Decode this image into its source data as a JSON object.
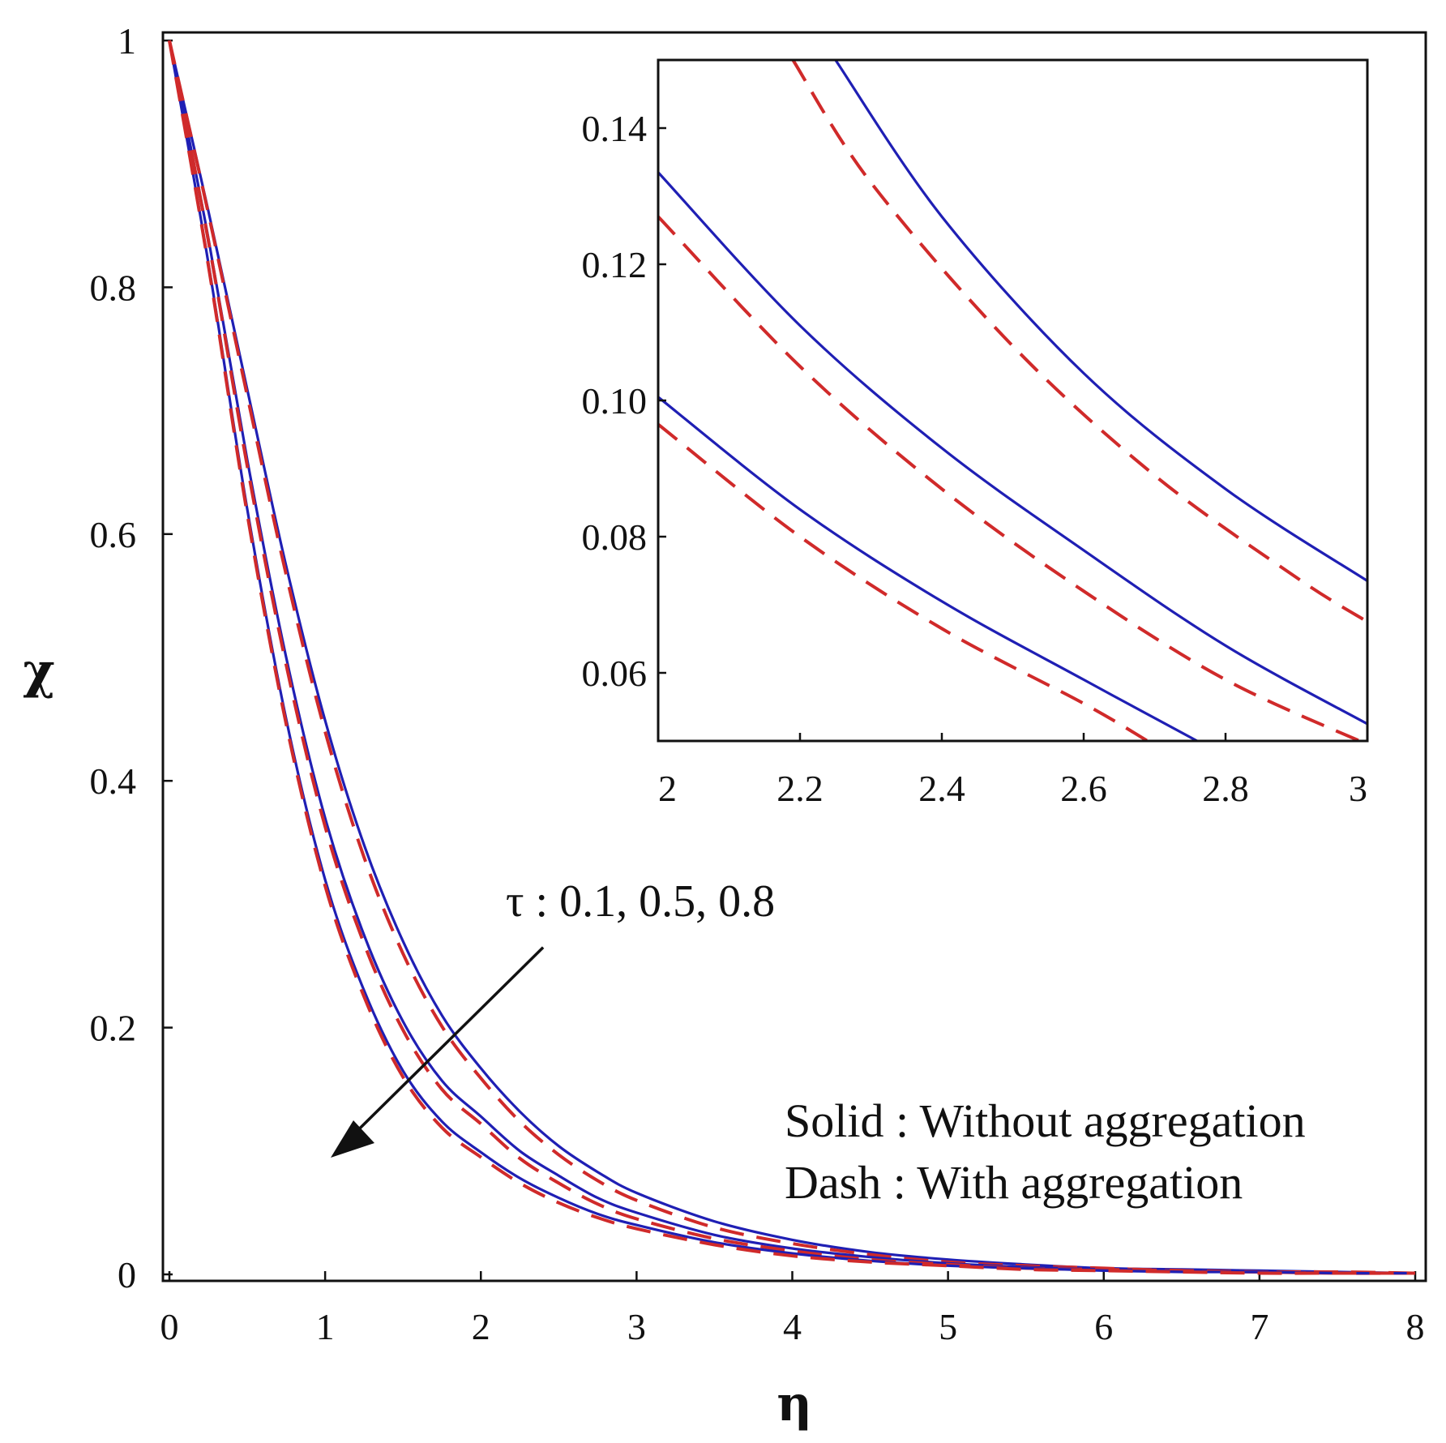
{
  "chart_data": [
    {
      "type": "line",
      "panel": "main",
      "xlabel": "η",
      "ylabel": "χ",
      "xlim": [
        0,
        8
      ],
      "ylim": [
        0,
        1
      ],
      "xticks": [
        0,
        1,
        2,
        3,
        4,
        5,
        6,
        7,
        8
      ],
      "xtick_labels": [
        "0",
        "1",
        "2",
        "3",
        "4",
        "5",
        "6",
        "7",
        "8"
      ],
      "yticks": [
        0,
        0.2,
        0.4,
        0.6,
        0.8,
        1
      ],
      "ytick_labels": [
        "0",
        "0.2",
        "0.4",
        "0.6",
        "0.8",
        "1"
      ],
      "series": [
        {
          "name": "Without aggregation, τ = 0.1",
          "style": "solid",
          "color": "#1f1fb4",
          "x": [
            0,
            0.25,
            0.5,
            0.75,
            1,
            1.25,
            1.5,
            1.75,
            2,
            2.25,
            2.5,
            2.75,
            3,
            3.5,
            4,
            4.5,
            5,
            5.5,
            6,
            6.5,
            7,
            7.5,
            8
          ],
          "y": [
            1.0,
            0.862,
            0.717,
            0.574,
            0.449,
            0.348,
            0.27,
            0.21,
            0.167,
            0.132,
            0.104,
            0.083,
            0.066,
            0.043,
            0.028,
            0.018,
            0.012,
            0.008,
            0.005,
            0.004,
            0.003,
            0.002,
            0.001
          ]
        },
        {
          "name": "With aggregation, τ = 0.1",
          "style": "dash",
          "color": "#d02a2a",
          "x": [
            0,
            0.25,
            0.5,
            0.75,
            1,
            1.25,
            1.5,
            1.75,
            2,
            2.25,
            2.5,
            2.75,
            3,
            3.5,
            4,
            4.5,
            5,
            5.5,
            6,
            6.5,
            7,
            7.5,
            8
          ],
          "y": [
            1.0,
            0.86,
            0.712,
            0.567,
            0.44,
            0.338,
            0.26,
            0.201,
            0.159,
            0.124,
            0.097,
            0.076,
            0.06,
            0.038,
            0.025,
            0.016,
            0.01,
            0.007,
            0.005,
            0.003,
            0.002,
            0.002,
            0.001
          ]
        },
        {
          "name": "Without aggregation, τ = 0.5",
          "style": "solid",
          "color": "#1f1fb4",
          "x": [
            0,
            0.25,
            0.5,
            0.75,
            1,
            1.25,
            1.5,
            1.75,
            2,
            2.25,
            2.5,
            2.75,
            3,
            3.5,
            4,
            4.5,
            5,
            5.5,
            6,
            6.5,
            7,
            7.5,
            8
          ],
          "y": [
            1.0,
            0.84,
            0.66,
            0.5,
            0.37,
            0.275,
            0.205,
            0.157,
            0.128,
            0.1,
            0.08,
            0.062,
            0.05,
            0.032,
            0.021,
            0.014,
            0.009,
            0.006,
            0.004,
            0.003,
            0.002,
            0.001,
            0.001
          ]
        },
        {
          "name": "With aggregation, τ = 0.5",
          "style": "dash",
          "color": "#d02a2a",
          "x": [
            0,
            0.25,
            0.5,
            0.75,
            1,
            1.25,
            1.5,
            1.75,
            2,
            2.25,
            2.5,
            2.75,
            3,
            3.5,
            4,
            4.5,
            5,
            5.5,
            6,
            6.5,
            7,
            7.5,
            8
          ],
          "y": [
            1.0,
            0.838,
            0.655,
            0.494,
            0.363,
            0.268,
            0.198,
            0.15,
            0.122,
            0.094,
            0.074,
            0.057,
            0.045,
            0.029,
            0.019,
            0.012,
            0.008,
            0.005,
            0.004,
            0.003,
            0.002,
            0.001,
            0.001
          ]
        },
        {
          "name": "Without aggregation, τ = 0.8",
          "style": "solid",
          "color": "#1f1fb4",
          "x": [
            0,
            0.25,
            0.5,
            0.75,
            1,
            1.25,
            1.5,
            1.75,
            2,
            2.25,
            2.5,
            2.75,
            3,
            3.5,
            4,
            4.5,
            5,
            5.5,
            6,
            6.5,
            7,
            7.5,
            8
          ],
          "y": [
            1.0,
            0.82,
            0.62,
            0.45,
            0.32,
            0.23,
            0.165,
            0.124,
            0.099,
            0.078,
            0.062,
            0.049,
            0.04,
            0.026,
            0.017,
            0.011,
            0.007,
            0.005,
            0.003,
            0.002,
            0.002,
            0.001,
            0.001
          ]
        },
        {
          "name": "With aggregation, τ = 0.8",
          "style": "dash",
          "color": "#d02a2a",
          "x": [
            0,
            0.25,
            0.5,
            0.75,
            1,
            1.25,
            1.5,
            1.75,
            2,
            2.25,
            2.5,
            2.75,
            3,
            3.5,
            4,
            4.5,
            5,
            5.5,
            6,
            6.5,
            7,
            7.5,
            8
          ],
          "y": [
            1.0,
            0.818,
            0.616,
            0.446,
            0.315,
            0.225,
            0.16,
            0.119,
            0.095,
            0.074,
            0.058,
            0.046,
            0.037,
            0.024,
            0.015,
            0.01,
            0.007,
            0.004,
            0.003,
            0.002,
            0.001,
            0.001,
            0.001
          ]
        }
      ],
      "annotations": {
        "arrow_label": "τ : 0.1, 0.5, 0.8",
        "arrow_from": [
          2.4,
          0.265
        ],
        "arrow_to": [
          1.05,
          0.098
        ],
        "legend_solid": "Solid : Without aggregation",
        "legend_dash": "Dash : With aggregation"
      }
    },
    {
      "type": "line",
      "panel": "inset",
      "xlim": [
        2,
        3
      ],
      "ylim": [
        0.05,
        0.15
      ],
      "xticks": [
        2,
        2.2,
        2.4,
        2.6,
        2.8,
        3
      ],
      "xtick_labels": [
        "2",
        "2.2",
        "2.4",
        "2.6",
        "2.8",
        "3"
      ],
      "yticks": [
        0.06,
        0.08,
        0.1,
        0.12,
        0.14
      ],
      "ytick_labels": [
        "0.06",
        "0.08",
        "0.10",
        "0.12",
        "0.14"
      ],
      "series": [
        {
          "name": "Without aggregation, τ = 0.1",
          "style": "solid",
          "color": "#1f1fb4",
          "x": [
            2.25,
            2.4,
            2.6,
            2.8,
            3.0
          ],
          "y": [
            0.15,
            0.127,
            0.104,
            0.087,
            0.0735
          ]
        },
        {
          "name": "With aggregation, τ = 0.1",
          "style": "dash",
          "color": "#d02a2a",
          "x": [
            2.19,
            2.3,
            2.5,
            2.7,
            2.9,
            3.0
          ],
          "y": [
            0.15,
            0.132,
            0.108,
            0.089,
            0.074,
            0.0675
          ]
        },
        {
          "name": "Without aggregation, τ = 0.5",
          "style": "solid",
          "color": "#1f1fb4",
          "x": [
            2.0,
            2.2,
            2.4,
            2.6,
            2.8,
            3.0
          ],
          "y": [
            0.1335,
            0.111,
            0.093,
            0.078,
            0.064,
            0.0525
          ]
        },
        {
          "name": "With aggregation, τ = 0.5",
          "style": "dash",
          "color": "#d02a2a",
          "x": [
            2.0,
            2.2,
            2.4,
            2.6,
            2.8,
            3.0
          ],
          "y": [
            0.127,
            0.105,
            0.087,
            0.072,
            0.059,
            0.0495
          ]
        },
        {
          "name": "Without aggregation, τ = 0.8",
          "style": "solid",
          "color": "#1f1fb4",
          "x": [
            2.0,
            2.2,
            2.4,
            2.6,
            2.76
          ],
          "y": [
            0.1005,
            0.084,
            0.0705,
            0.059,
            0.05
          ]
        },
        {
          "name": "With aggregation, τ = 0.8",
          "style": "dash",
          "color": "#d02a2a",
          "x": [
            2.0,
            2.2,
            2.4,
            2.6,
            2.69
          ],
          "y": [
            0.0965,
            0.08,
            0.0665,
            0.0555,
            0.05
          ]
        }
      ]
    }
  ]
}
